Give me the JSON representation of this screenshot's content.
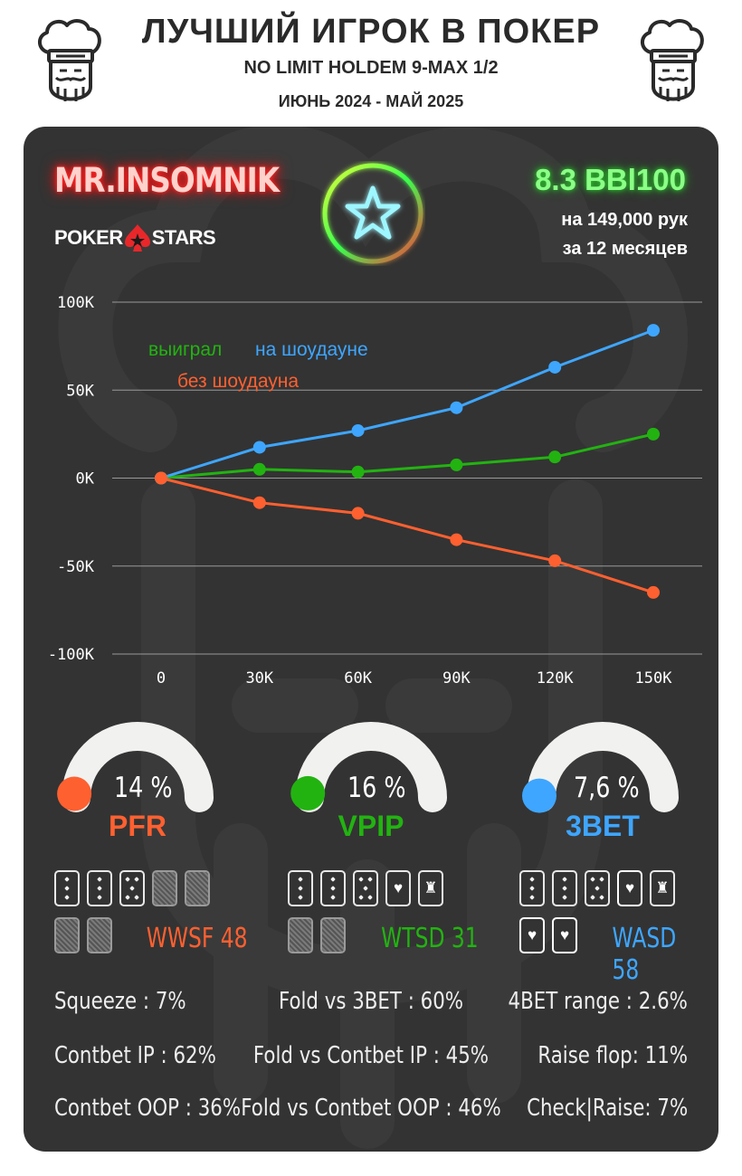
{
  "header": {
    "title": "ЛУЧШИЙ ИГРОК В ПОКЕР",
    "subtitle": "NO LIMIT HOLDEM 9-MAX 1/2",
    "period": "ИЮНЬ 2024 - МАЙ 2025"
  },
  "player": {
    "name": "MR.INSOMNIK",
    "room_left": "POKER",
    "room_right": "STARS",
    "winrate": "8.3 BBl100",
    "hands": "на 149,000 рук",
    "months": "за  12 месяцев"
  },
  "colors": {
    "orange": "#ff6030",
    "green": "#22b311",
    "blue": "#3ea6ff",
    "panel": "#333333"
  },
  "chart_data": {
    "type": "line",
    "x": [
      0,
      30000,
      60000,
      90000,
      120000,
      150000
    ],
    "x_tick_labels": [
      "0",
      "30K",
      "60K",
      "90K",
      "120K",
      "150K"
    ],
    "y_tick_values": [
      100000,
      50000,
      0,
      -50000,
      -100000
    ],
    "y_tick_labels": [
      "100K",
      "50K",
      "0K",
      "-50K",
      "-100K"
    ],
    "ylim": [
      -100000,
      100000
    ],
    "grid": true,
    "series": [
      {
        "name": "выиграл",
        "color": "#22b311",
        "values": [
          0,
          5000,
          3500,
          7500,
          12000,
          25000
        ]
      },
      {
        "name": "на шоудауне",
        "color": "#3ea6ff",
        "values": [
          0,
          17500,
          27000,
          40000,
          63000,
          84000
        ]
      },
      {
        "name": "без шоудауна",
        "color": "#ff6030",
        "values": [
          0,
          -14000,
          -20000,
          -35000,
          -47000,
          -65000
        ]
      }
    ]
  },
  "gauges": [
    {
      "value_text": "14 %",
      "label": "PFR",
      "percent": 14,
      "color": "#ff6030"
    },
    {
      "value_text": "16 %",
      "label": "VPIP",
      "percent": 16,
      "color": "#22b311"
    },
    {
      "value_text": "7,6 %",
      "label": "3BET",
      "percent": 7.6,
      "color": "#3ea6ff"
    }
  ],
  "street_stats": [
    {
      "label": "WWSF 48",
      "color": "#ff6030"
    },
    {
      "label": "WTSD 31",
      "color": "#22b311"
    },
    {
      "label": "WASD 58",
      "color": "#3ea6ff"
    }
  ],
  "stats": {
    "left": [
      "Squeeze : 7%",
      "Contbet IP : 62%",
      "Contbet OOP : 36%"
    ],
    "center": [
      "Fold vs 3BET : 60%",
      "Fold vs Contbet IP : 45%",
      "Fold vs Contbet OOP : 46%"
    ],
    "right": [
      "4BET range : 2.6%",
      "Raise flop: 11%",
      "Check|Raise: 7%"
    ]
  }
}
